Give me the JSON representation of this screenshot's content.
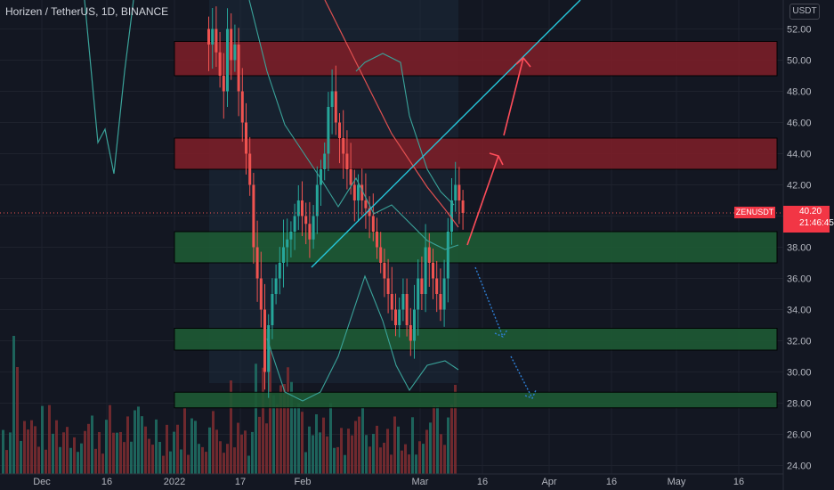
{
  "header": {
    "title": "Horizen / TetherUS, 1D, BINANCE",
    "unit": "USDT"
  },
  "price_tag": {
    "symbol": "ZENUSDT",
    "price": "40.20",
    "countdown": "21:46:45"
  },
  "colors": {
    "background": "#131722",
    "up": "#26a69a",
    "down": "#ef5350",
    "resistance_zone": "#7a1e28",
    "support_zone": "#1d5a34",
    "ma_red": "#e05050",
    "band_teal": "#3aa39a",
    "trendline": "#26c6da",
    "projection_red": "#ff4d5a",
    "projection_blue": "#2e7fd6"
  },
  "chart_data": {
    "type": "candlestick",
    "title": "Horizen / TetherUS, 1D, BINANCE",
    "ylabel": "USDT",
    "ylim": [
      24,
      53
    ],
    "y_ticks": [
      "24.00",
      "26.00",
      "28.00",
      "30.00",
      "32.00",
      "34.00",
      "36.00",
      "38.00",
      "40.00",
      "42.00",
      "44.00",
      "46.00",
      "48.00",
      "50.00",
      "52.00"
    ],
    "x_ticks": [
      "Dec",
      "16",
      "2022",
      "17",
      "Feb",
      "Mar",
      "16",
      "Apr",
      "16",
      "May",
      "16"
    ],
    "zones": [
      {
        "kind": "resistance",
        "low": 49.0,
        "high": 51.2
      },
      {
        "kind": "resistance",
        "low": 43.0,
        "high": 45.0
      },
      {
        "kind": "support",
        "low": 37.0,
        "high": 39.0
      },
      {
        "kind": "support",
        "low": 31.4,
        "high": 32.8
      },
      {
        "kind": "support",
        "low": 27.7,
        "high": 28.7
      }
    ],
    "last_price": 40.2
  }
}
